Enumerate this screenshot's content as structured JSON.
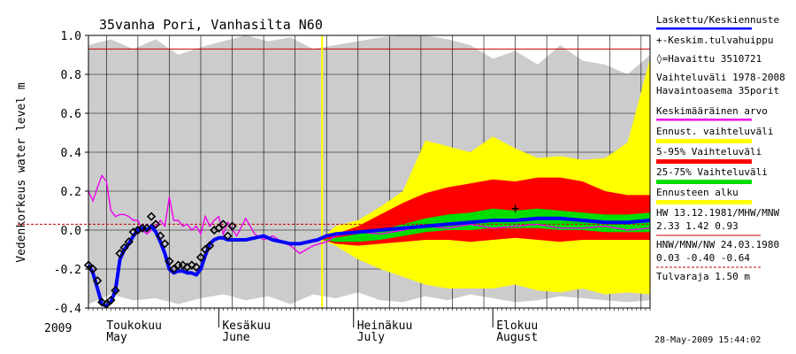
{
  "chart_data": {
    "type": "area",
    "title": "35vanha Pori, Vanhasilta N60",
    "ylabel": "Vedenkorkeus water level m",
    "ylim": [
      -0.4,
      1.0
    ],
    "yticks": [
      "1.0",
      "0.8",
      "0.6",
      "0.4",
      "0.2",
      "0.0",
      "-0.2",
      "-0.4"
    ],
    "year_label": "2009",
    "months": [
      {
        "fi": "Toukokuu",
        "en": "May"
      },
      {
        "fi": "Kesäkuu",
        "en": "June"
      },
      {
        "fi": "Heinäkuu",
        "en": "July"
      },
      {
        "fi": "Elokuu",
        "en": "August"
      }
    ],
    "timestamp": "28-May-2009 15:44:02",
    "day_range": [
      -25,
      100
    ],
    "forecast_start_day": 27,
    "forecast_start_marker_color": "#ffff00",
    "hw_level": 0.93,
    "mw_level": 0.03,
    "colors": {
      "range": "#cccccc",
      "forecast_range": "#ffff00",
      "p5_95": "#ff0000",
      "p25_75": "#00dd00",
      "forecast": "#0000ff",
      "mean": "#ee00ee",
      "hw_line": "#cc0000",
      "mw_line": "#cc0000",
      "background": "#888888"
    },
    "legend": [
      {
        "text": "Laskettu/Keskiennuste",
        "color": "#0000ff"
      },
      {
        "text": "+-Keskim.tulvahuippu",
        "color": "#000000"
      },
      {
        "text": "◊=Havaittu 3510721",
        "color": "#000000"
      },
      {
        "text": "Vaihteluväli 1978-2008",
        "color": "#000000"
      },
      {
        "text": "Havaintoasema 35porit",
        "color": "#000000"
      },
      {
        "text": "Keskimääräinen arvo",
        "color": "#ee00ee"
      },
      {
        "text": "Ennust. vaihteluväli",
        "color": "#ffff00"
      },
      {
        "text": "5-95% Vaihteluväli",
        "color": "#ff0000"
      },
      {
        "text": "25-75% Vaihteluväli",
        "color": "#00dd00"
      },
      {
        "text": "Ennusteen alku",
        "color": "#ffff00"
      },
      {
        "text": "HW 13.12.1981/MHW/MNW",
        "color": "#000000"
      },
      {
        "text": "2.33 1.42 0.93",
        "color": "#000000"
      },
      {
        "text": "HNW/MNW/NW 24.03.1980",
        "color": "#000000"
      },
      {
        "text": "0.03 -0.40 -0.64",
        "color": "#000000"
      },
      {
        "text": "Tulvaraja 1.50 m",
        "color": "#000000"
      }
    ],
    "observed": {
      "x": [
        -25,
        -24,
        -23,
        -22,
        -21,
        -20,
        -19,
        -18,
        -17,
        -16,
        -15,
        -14,
        -13,
        -12,
        -11,
        -10,
        -9,
        -8,
        -7,
        -6,
        -5,
        -4,
        -3,
        -2,
        -1,
        0,
        1,
        2,
        3,
        4,
        5,
        6,
        7
      ],
      "y": [
        -0.18,
        -0.2,
        -0.26,
        -0.37,
        -0.38,
        -0.36,
        -0.31,
        -0.12,
        -0.09,
        -0.06,
        -0.01,
        0.0,
        0.01,
        0.01,
        0.07,
        0.03,
        -0.03,
        -0.07,
        -0.16,
        -0.2,
        -0.18,
        -0.18,
        -0.19,
        -0.18,
        -0.19,
        -0.14,
        -0.1,
        -0.08,
        0.0,
        0.01,
        0.03,
        -0.03,
        0.02
      ]
    },
    "computed": {
      "x": [
        -25,
        -24,
        -23,
        -22,
        -21,
        -20,
        -19,
        -18,
        -17,
        -16,
        -15,
        -14,
        -13,
        -12,
        -11,
        -10,
        -9,
        -8,
        -7,
        -6,
        -5,
        -4,
        -3,
        -2,
        -1,
        0,
        1,
        2,
        3,
        4,
        5,
        6,
        7,
        8,
        10,
        12,
        14,
        16,
        18,
        20,
        22,
        24,
        26,
        28,
        30,
        35,
        40,
        45,
        50,
        55,
        60,
        65,
        70,
        75,
        80,
        85,
        90,
        95,
        100
      ],
      "y": [
        -0.18,
        -0.22,
        -0.3,
        -0.38,
        -0.39,
        -0.37,
        -0.31,
        -0.15,
        -0.1,
        -0.07,
        -0.03,
        0.0,
        0.01,
        0.0,
        0.02,
        -0.01,
        -0.06,
        -0.12,
        -0.2,
        -0.22,
        -0.21,
        -0.21,
        -0.22,
        -0.22,
        -0.23,
        -0.2,
        -0.13,
        -0.07,
        -0.05,
        -0.04,
        -0.04,
        -0.05,
        -0.05,
        -0.05,
        -0.05,
        -0.04,
        -0.03,
        -0.05,
        -0.06,
        -0.07,
        -0.07,
        -0.06,
        -0.05,
        -0.03,
        -0.02,
        -0.01,
        0.0,
        0.01,
        0.02,
        0.03,
        0.04,
        0.05,
        0.05,
        0.06,
        0.06,
        0.05,
        0.04,
        0.04,
        0.05
      ]
    },
    "mean": {
      "x": [
        -25,
        -24,
        -23,
        -22,
        -21,
        -20,
        -19,
        -18,
        -17,
        -16,
        -15,
        -14,
        -13,
        -12,
        -11,
        -10,
        -9,
        -8,
        -7,
        -6,
        -5,
        -4,
        -3,
        -2,
        -1,
        0,
        1,
        2,
        3,
        4,
        5,
        6,
        8,
        10,
        12,
        14,
        16,
        18,
        20,
        22,
        25,
        28,
        30,
        35,
        40,
        45,
        50,
        55,
        60,
        65,
        70,
        75,
        80,
        85,
        90,
        95,
        100
      ],
      "y": [
        0.2,
        0.15,
        0.22,
        0.28,
        0.25,
        0.1,
        0.07,
        0.08,
        0.08,
        0.07,
        0.05,
        0.05,
        0.0,
        -0.02,
        0.0,
        0.02,
        0.05,
        0.02,
        0.17,
        0.05,
        0.05,
        0.02,
        0.03,
        0.0,
        0.02,
        -0.02,
        0.07,
        0.02,
        0.05,
        0.07,
        -0.02,
        0.04,
        -0.03,
        0.06,
        -0.02,
        -0.05,
        -0.03,
        -0.06,
        -0.08,
        -0.12,
        -0.08,
        -0.06,
        -0.03,
        -0.01,
        -0.02,
        0.0,
        0.02,
        0.01,
        0.03,
        0.01,
        0.02,
        0.03,
        0.01,
        0.01,
        0.02,
        0.0,
        0.01
      ]
    },
    "range_band": {
      "x": [
        -25,
        -20,
        -15,
        -10,
        -5,
        0,
        5,
        10,
        15,
        20,
        25,
        30,
        35,
        40,
        45,
        50,
        55,
        60,
        65,
        70,
        75,
        80,
        85,
        90,
        95,
        100
      ],
      "upper": [
        0.95,
        0.98,
        0.93,
        0.98,
        0.9,
        0.94,
        0.97,
        1.0,
        0.97,
        0.99,
        0.93,
        0.95,
        0.97,
        0.99,
        1.0,
        1.0,
        0.98,
        0.95,
        0.88,
        0.92,
        0.85,
        0.95,
        0.87,
        0.85,
        0.8,
        0.9
      ],
      "lower": [
        -0.38,
        -0.33,
        -0.36,
        -0.35,
        -0.38,
        -0.35,
        -0.33,
        -0.36,
        -0.34,
        -0.38,
        -0.33,
        -0.35,
        -0.32,
        -0.36,
        -0.37,
        -0.34,
        -0.36,
        -0.33,
        -0.35,
        -0.37,
        -0.36,
        -0.34,
        -0.35,
        -0.36,
        -0.37,
        -0.36
      ]
    },
    "forecast_band": {
      "x": [
        27,
        30,
        35,
        40,
        45,
        50,
        55,
        60,
        65,
        70,
        75,
        80,
        85,
        90,
        95,
        100
      ],
      "upper": [
        -0.04,
        0.02,
        0.05,
        0.12,
        0.2,
        0.46,
        0.43,
        0.4,
        0.48,
        0.42,
        0.37,
        0.38,
        0.36,
        0.37,
        0.45,
        0.88
      ],
      "lower": [
        -0.05,
        -0.08,
        -0.15,
        -0.2,
        -0.24,
        -0.28,
        -0.3,
        -0.3,
        -0.3,
        -0.28,
        -0.31,
        -0.32,
        -0.3,
        -0.33,
        -0.32,
        -0.33
      ]
    },
    "p5_95_band": {
      "x": [
        27,
        30,
        35,
        40,
        45,
        50,
        55,
        60,
        65,
        70,
        75,
        80,
        85,
        90,
        95,
        100
      ],
      "upper": [
        -0.05,
        -0.02,
        0.02,
        0.08,
        0.14,
        0.19,
        0.22,
        0.24,
        0.26,
        0.25,
        0.27,
        0.27,
        0.25,
        0.2,
        0.18,
        0.18
      ],
      "lower": [
        -0.05,
        -0.07,
        -0.08,
        -0.07,
        -0.06,
        -0.05,
        -0.05,
        -0.06,
        -0.05,
        -0.04,
        -0.05,
        -0.06,
        -0.05,
        -0.05,
        -0.05,
        -0.05
      ]
    },
    "p25_75_band": {
      "x": [
        27,
        30,
        35,
        40,
        45,
        50,
        55,
        60,
        65,
        70,
        75,
        80,
        85,
        90,
        95,
        100
      ],
      "upper": [
        -0.05,
        -0.04,
        -0.02,
        0.0,
        0.03,
        0.06,
        0.08,
        0.09,
        0.11,
        0.1,
        0.11,
        0.1,
        0.09,
        0.08,
        0.08,
        0.09
      ],
      "lower": [
        -0.05,
        -0.06,
        -0.06,
        -0.05,
        -0.03,
        -0.01,
        0.0,
        0.0,
        0.01,
        0.01,
        0.01,
        0.0,
        0.0,
        -0.01,
        -0.01,
        -0.01
      ]
    },
    "mean_peak": {
      "x": 70,
      "y": 0.11
    }
  }
}
